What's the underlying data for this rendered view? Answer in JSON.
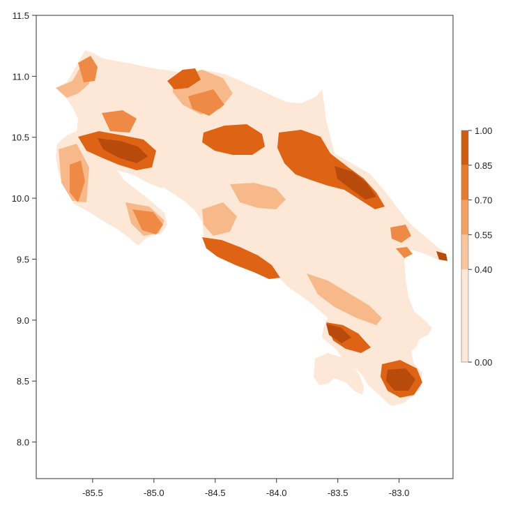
{
  "map": {
    "x_axis": {
      "range": [
        -85.96,
        -82.56
      ],
      "ticks": [
        {
          "value": -85.5,
          "label": "-85.5"
        },
        {
          "value": -85.0,
          "label": "-85.0"
        },
        {
          "value": -84.5,
          "label": "-84.5"
        },
        {
          "value": -84.0,
          "label": "-84.0"
        },
        {
          "value": -83.5,
          "label": "-83.5"
        },
        {
          "value": -83.0,
          "label": "-83.0"
        }
      ]
    },
    "y_axis": {
      "range": [
        7.7,
        11.5
      ],
      "ticks": [
        {
          "value": 8.0,
          "label": "8.0"
        },
        {
          "value": 8.5,
          "label": "8.5"
        },
        {
          "value": 9.0,
          "label": "9.0"
        },
        {
          "value": 9.5,
          "label": "9.5"
        },
        {
          "value": 10.0,
          "label": "10.0"
        },
        {
          "value": 10.5,
          "label": "10.5"
        },
        {
          "value": 11.0,
          "label": "11.0"
        },
        {
          "value": 11.5,
          "label": "11.5"
        }
      ]
    },
    "colors": {
      "base": "#fde8d8",
      "low": "#f8b98a",
      "mid": "#ee8a45",
      "high": "#de6314",
      "very_high": "#b84b0c"
    },
    "legend": {
      "placement": "right",
      "breaks": [
        0.0,
        0.4,
        0.55,
        0.7,
        0.85,
        1.0
      ],
      "labels": [
        "1.00",
        "0.85",
        "0.70",
        "0.55",
        "0.40",
        "0.00"
      ],
      "colors": [
        "#fde8d8",
        "#f8c49c",
        "#f2a163",
        "#e57b2e",
        "#d05c12",
        "#a0430b"
      ]
    }
  }
}
